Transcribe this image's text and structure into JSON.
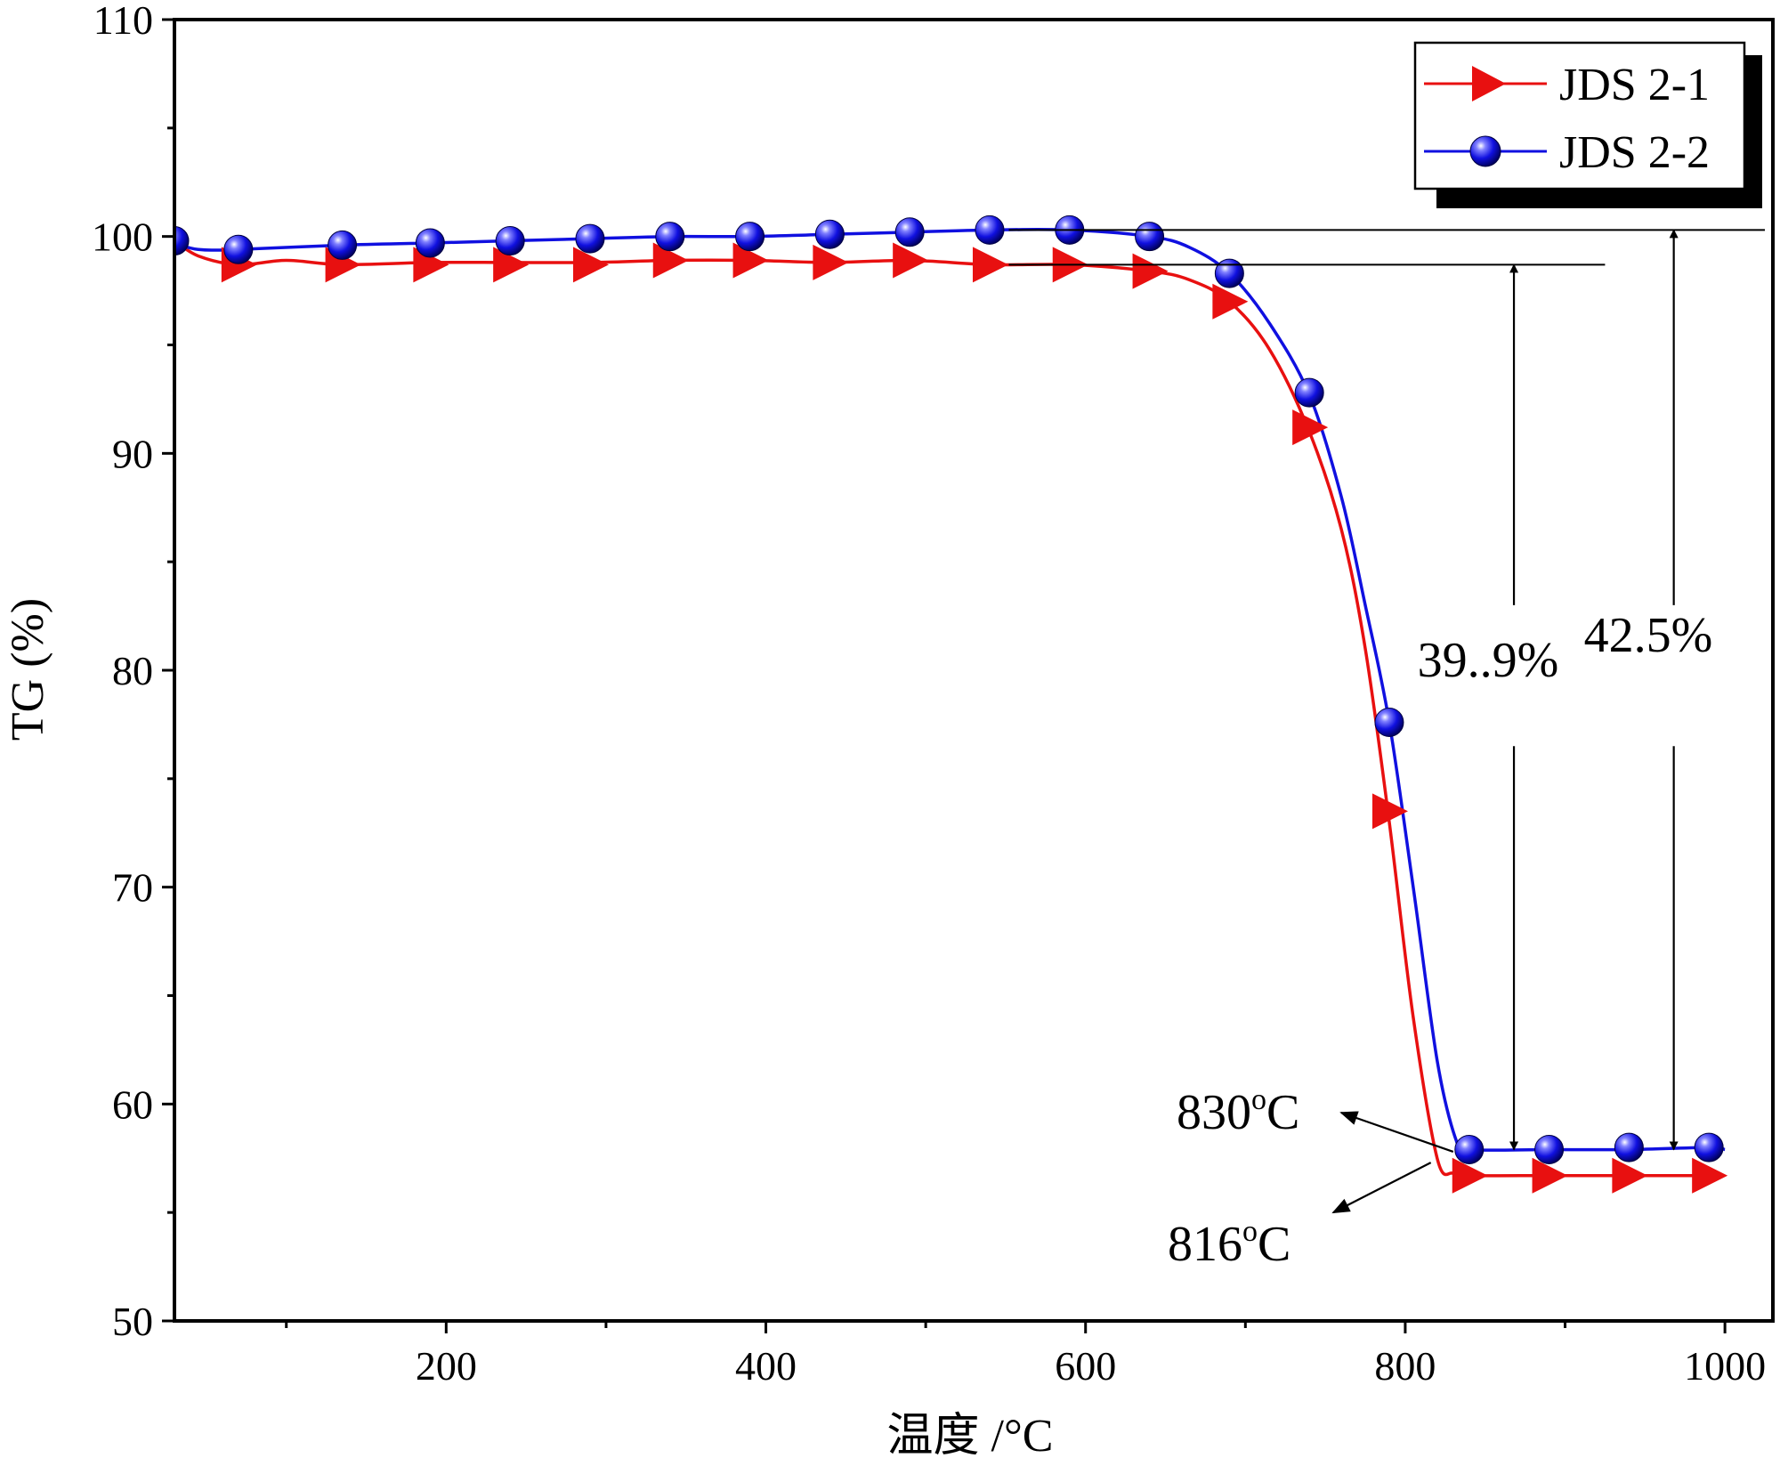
{
  "chart_data": {
    "type": "line",
    "title": "",
    "xlabel": "温度 /°C",
    "ylabel": "TG (%)",
    "xlim": [
      30,
      1030
    ],
    "ylim": [
      50,
      110
    ],
    "x_ticks": [
      200,
      400,
      600,
      800,
      1000
    ],
    "x_ticks_minor": [
      100,
      300,
      500,
      700,
      900
    ],
    "y_ticks": [
      50,
      60,
      70,
      80,
      90,
      100,
      110
    ],
    "y_ticks_minor": [
      55,
      65,
      75,
      85,
      95,
      105
    ],
    "grid": false,
    "legend_position": "top-right",
    "series": [
      {
        "name": "JDS 2-1",
        "color": "#e81010",
        "marker": "right-triangle",
        "curve": [
          [
            30,
            99.8
          ],
          [
            45,
            99.1
          ],
          [
            70,
            98.7
          ],
          [
            100,
            98.9
          ],
          [
            135,
            98.7
          ],
          [
            190,
            98.8
          ],
          [
            240,
            98.8
          ],
          [
            290,
            98.8
          ],
          [
            340,
            98.9
          ],
          [
            390,
            98.9
          ],
          [
            440,
            98.8
          ],
          [
            490,
            98.9
          ],
          [
            540,
            98.7
          ],
          [
            590,
            98.7
          ],
          [
            640,
            98.4
          ],
          [
            665,
            98.0
          ],
          [
            690,
            97.0
          ],
          [
            715,
            94.8
          ],
          [
            740,
            91.0
          ],
          [
            760,
            86.5
          ],
          [
            775,
            81.0
          ],
          [
            790,
            73.0
          ],
          [
            805,
            64.0
          ],
          [
            820,
            57.5
          ],
          [
            830,
            56.8
          ],
          [
            840,
            56.7
          ],
          [
            890,
            56.7
          ],
          [
            940,
            56.7
          ],
          [
            990,
            56.7
          ]
        ],
        "markers": [
          [
            70,
            98.7
          ],
          [
            135,
            98.7
          ],
          [
            190,
            98.7
          ],
          [
            240,
            98.7
          ],
          [
            290,
            98.7
          ],
          [
            340,
            98.9
          ],
          [
            390,
            98.9
          ],
          [
            440,
            98.8
          ],
          [
            490,
            98.9
          ],
          [
            540,
            98.7
          ],
          [
            590,
            98.7
          ],
          [
            640,
            98.4
          ],
          [
            690,
            97.0
          ],
          [
            740,
            91.2
          ],
          [
            790,
            73.5
          ],
          [
            840,
            56.7
          ],
          [
            890,
            56.7
          ],
          [
            940,
            56.7
          ],
          [
            990,
            56.7
          ]
        ]
      },
      {
        "name": "JDS 2-2",
        "color": "#1010e0",
        "marker": "sphere",
        "curve": [
          [
            30,
            99.7
          ],
          [
            45,
            99.4
          ],
          [
            70,
            99.4
          ],
          [
            135,
            99.6
          ],
          [
            190,
            99.7
          ],
          [
            240,
            99.8
          ],
          [
            290,
            99.9
          ],
          [
            340,
            100.0
          ],
          [
            390,
            100.0
          ],
          [
            440,
            100.1
          ],
          [
            490,
            100.2
          ],
          [
            540,
            100.3
          ],
          [
            590,
            100.3
          ],
          [
            640,
            100.0
          ],
          [
            665,
            99.5
          ],
          [
            690,
            98.3
          ],
          [
            715,
            96.0
          ],
          [
            740,
            92.7
          ],
          [
            760,
            88.0
          ],
          [
            775,
            83.0
          ],
          [
            790,
            77.6
          ],
          [
            805,
            70.0
          ],
          [
            820,
            62.0
          ],
          [
            832,
            58.3
          ],
          [
            840,
            57.9
          ],
          [
            890,
            57.9
          ],
          [
            940,
            57.9
          ],
          [
            990,
            58.0
          ],
          [
            1000,
            57.9
          ]
        ],
        "markers": [
          [
            30,
            99.8
          ],
          [
            70,
            99.4
          ],
          [
            135,
            99.6
          ],
          [
            190,
            99.7
          ],
          [
            240,
            99.8
          ],
          [
            290,
            99.9
          ],
          [
            340,
            100.0
          ],
          [
            390,
            100.0
          ],
          [
            440,
            100.1
          ],
          [
            490,
            100.2
          ],
          [
            540,
            100.3
          ],
          [
            590,
            100.3
          ],
          [
            640,
            100.0
          ],
          [
            690,
            98.3
          ],
          [
            740,
            92.8
          ],
          [
            790,
            77.6
          ],
          [
            840,
            57.9
          ],
          [
            890,
            57.9
          ],
          [
            940,
            58.0
          ],
          [
            990,
            58.0
          ]
        ]
      }
    ],
    "annotations": [
      {
        "text": "39..9%",
        "at": [
          868,
          80
        ]
      },
      {
        "text": "42.5%",
        "at": [
          968,
          81
        ]
      },
      {
        "text": "830°C",
        "at": [
          795,
          59.6
        ]
      },
      {
        "text": "816°C",
        "at": [
          790,
          54.1
        ]
      }
    ],
    "reference_lines": [
      {
        "from": [
          552,
          100.3
        ],
        "to": [
          1025,
          100.3
        ]
      },
      {
        "from": [
          552,
          98.7
        ],
        "to": [
          925,
          98.7
        ]
      }
    ],
    "arrows": [
      {
        "from": [
          868,
          83
        ],
        "to": [
          868,
          98.7
        ]
      },
      {
        "from": [
          868,
          76.5
        ],
        "to": [
          868,
          57.9
        ]
      },
      {
        "from": [
          968,
          83
        ],
        "to": [
          968,
          100.3
        ]
      },
      {
        "from": [
          968,
          76.5
        ],
        "to": [
          968,
          57.9
        ]
      },
      {
        "from": [
          830,
          57.8
        ],
        "to": [
          760,
          59.6
        ]
      },
      {
        "from": [
          816,
          57.3
        ],
        "to": [
          755,
          55.0
        ]
      }
    ]
  },
  "labels": {
    "x_axis_title": "温度 /°C",
    "y_axis_title": "TG (%)",
    "annot_399": "39..9%",
    "annot_425": "42.5%",
    "annot_830_num": "830",
    "annot_830_deg": "o",
    "annot_830_unit": "C",
    "annot_816_num": "816",
    "annot_816_deg": "o",
    "annot_816_unit": "C",
    "legend_1": "JDS 2-1",
    "legend_2": "JDS 2-2"
  }
}
